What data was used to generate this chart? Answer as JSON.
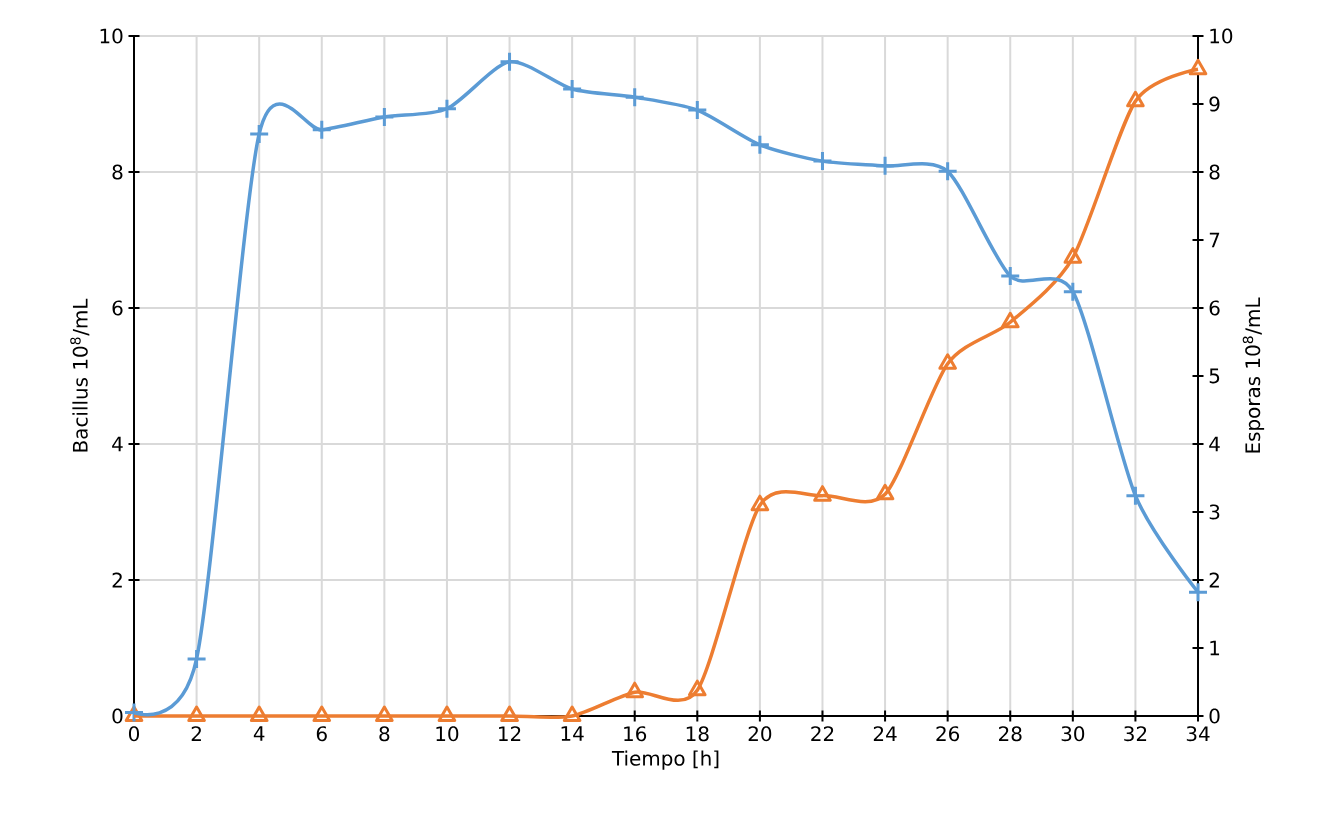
{
  "chart_data": {
    "type": "line",
    "xlabel": "Tiempo [h]",
    "ylabel": "Bacillus 10$^{8}$/mL",
    "y2label": "Esporas 10$^{8}$/mL",
    "x": [
      0,
      2,
      4,
      6,
      8,
      10,
      12,
      14,
      16,
      18,
      20,
      22,
      24,
      26,
      28,
      30,
      32,
      34
    ],
    "series": [
      {
        "color": "#5b9bd5",
        "marker": "cross",
        "values": [
          0.05,
          0.84,
          8.56,
          8.62,
          8.81,
          8.93,
          9.62,
          9.22,
          9.1,
          8.91,
          8.4,
          8.16,
          8.09,
          8.01,
          6.47,
          6.24,
          3.24,
          1.82
        ]
      },
      {
        "color": "#ed7d31",
        "marker": "triangle",
        "axis": "y2",
        "values": [
          0,
          0,
          0,
          0,
          0,
          0,
          0,
          0,
          0.35,
          0.38,
          3.1,
          3.24,
          3.26,
          5.18,
          5.79,
          6.74,
          9.04,
          9.51
        ]
      }
    ],
    "xlim": [
      0,
      34
    ],
    "xticks": [
      0,
      2,
      4,
      6,
      8,
      10,
      12,
      14,
      16,
      18,
      20,
      22,
      24,
      26,
      28,
      30,
      32,
      34
    ],
    "ylim": [
      0,
      10
    ],
    "yticks": [
      0,
      2,
      4,
      6,
      8,
      10
    ],
    "y2lim": [
      0,
      10
    ],
    "y2ticks": [
      0,
      1,
      2,
      3,
      4,
      5,
      6,
      7,
      8,
      9,
      10
    ],
    "grid": true
  }
}
